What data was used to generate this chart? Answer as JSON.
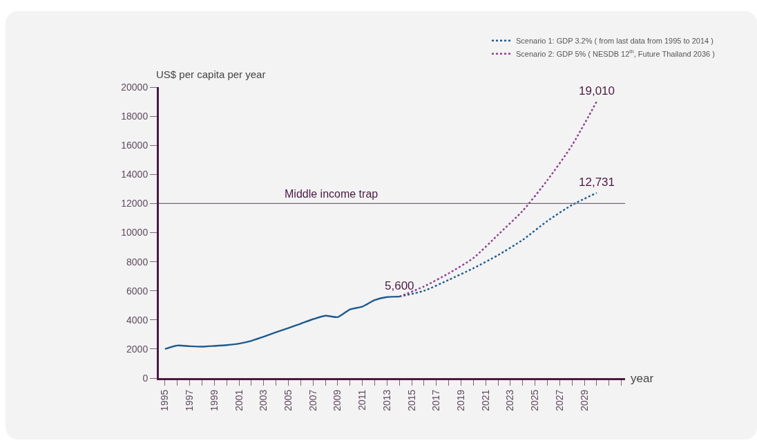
{
  "chart_data": {
    "type": "line",
    "xlabel": "year",
    "ylabel": "US$ per capita per year",
    "xlim": [
      1994.5,
      2032.3
    ],
    "xticks": [
      1995,
      1997,
      1999,
      2001,
      2003,
      2005,
      2007,
      2009,
      2011,
      2013,
      2015,
      2017,
      2019,
      2021,
      2023,
      2025,
      2027,
      2029
    ],
    "ylim": [
      0,
      20000
    ],
    "yticks": [
      0,
      2000,
      4000,
      6000,
      8000,
      10000,
      12000,
      14000,
      16000,
      18000,
      20000
    ],
    "legend": "top right",
    "marker": "none",
    "ref_lines": [
      {
        "axis": "y",
        "value": 12000,
        "label": "Middle income trap",
        "color": "#7a6478"
      }
    ],
    "series": [
      {
        "color": "#1d5a8e",
        "line_style": "solid",
        "x": [
          1995,
          1996,
          1997,
          1998,
          1999,
          2000,
          2001,
          2002,
          2003,
          2004,
          2005,
          2006,
          2007,
          2008,
          2009,
          2010,
          2011,
          2012,
          2013,
          2014
        ],
        "values": [
          2000,
          2240,
          2190,
          2160,
          2210,
          2270,
          2370,
          2560,
          2850,
          3150,
          3440,
          3740,
          4050,
          4290,
          4190,
          4720,
          4910,
          5360,
          5570,
          5600
        ],
        "value_labels": [
          null,
          null,
          null,
          null,
          null,
          null,
          null,
          null,
          null,
          null,
          null,
          null,
          null,
          null,
          null,
          null,
          null,
          null,
          null,
          "5,600"
        ]
      },
      {
        "name": "Scenario 1: GDP 3.2% ( from last data from 1995 to 2014 )",
        "color": "#1d5a8e",
        "line_style": "dotted",
        "x": [
          2014,
          2016,
          2018,
          2020,
          2022,
          2024,
          2026,
          2028,
          2030
        ],
        "values": [
          5600,
          6000,
          6750,
          7550,
          8450,
          9500,
          10800,
          11900,
          12731
        ],
        "value_labels": [
          null,
          null,
          null,
          null,
          null,
          null,
          null,
          null,
          "12,731"
        ]
      },
      {
        "name": "Scenario 2: GDP 5% ( NESDB 12$^{th}$, Future Thailand 2036 )",
        "color": "#8b3f8f",
        "line_style": "dotted",
        "x": [
          2014,
          2016,
          2018,
          2020,
          2022,
          2024,
          2026,
          2028,
          2030
        ],
        "values": [
          5600,
          6300,
          7200,
          8250,
          9850,
          11500,
          13600,
          16000,
          19010
        ],
        "value_labels": [
          null,
          null,
          null,
          null,
          null,
          null,
          null,
          null,
          "19,010"
        ]
      }
    ]
  }
}
